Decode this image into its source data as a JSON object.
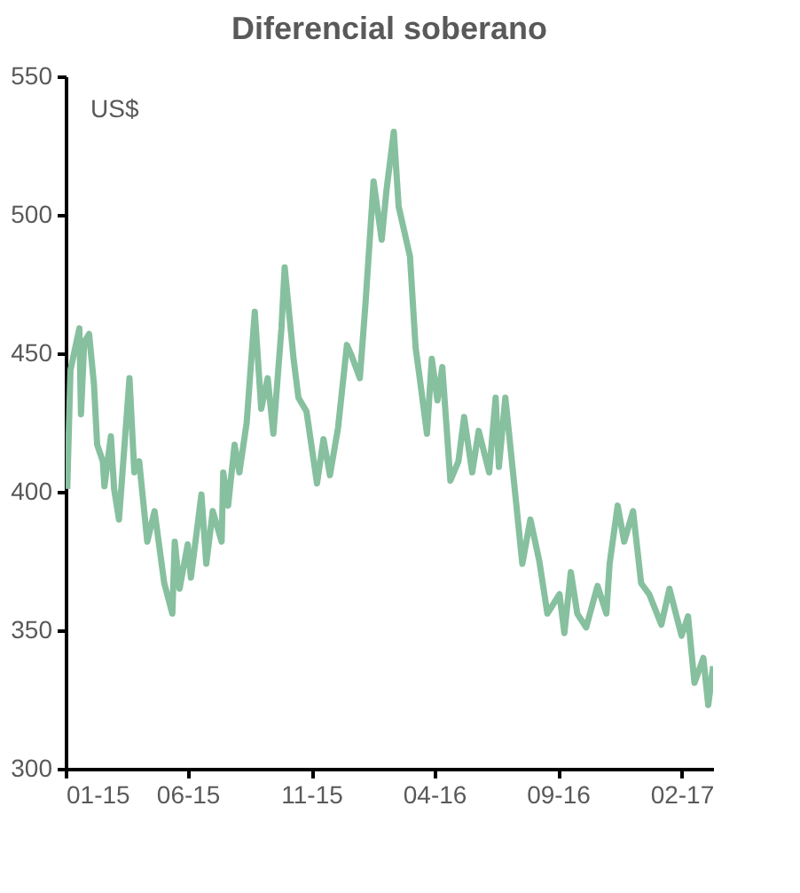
{
  "chart_data": {
    "type": "line",
    "title": "Diferencial soberano",
    "annotations": [
      "US$"
    ],
    "xlim": [
      "2015-01-01",
      "2017-03-12"
    ],
    "xticks": [
      {
        "value": "2015-01-01",
        "label": "01-15"
      },
      {
        "value": "2015-06-01",
        "label": "06-15"
      },
      {
        "value": "2015-11-01",
        "label": "11-15"
      },
      {
        "value": "2016-04-01",
        "label": "04-16"
      },
      {
        "value": "2016-09-01",
        "label": "09-16"
      },
      {
        "value": "2017-02-01",
        "label": "02-17"
      }
    ],
    "ylim": [
      300,
      550
    ],
    "yticks": [
      300,
      350,
      400,
      450,
      500,
      550
    ],
    "grid": false,
    "line_style": "solid",
    "marker": "none",
    "x": [
      "2015-01-03",
      "2015-01-07",
      "2015-01-18",
      "2015-01-20",
      "2015-01-24",
      "2015-01-30",
      "2015-02-05",
      "2015-02-09",
      "2015-02-16",
      "2015-02-18",
      "2015-02-26",
      "2015-03-02",
      "2015-03-08",
      "2015-03-21",
      "2015-03-27",
      "2015-04-02",
      "2015-04-12",
      "2015-04-21",
      "2015-04-27",
      "2015-05-03",
      "2015-05-13",
      "2015-05-16",
      "2015-05-22",
      "2015-06-01",
      "2015-06-05",
      "2015-06-18",
      "2015-06-24",
      "2015-07-02",
      "2015-07-13",
      "2015-07-15",
      "2015-07-21",
      "2015-07-29",
      "2015-08-04",
      "2015-08-13",
      "2015-08-23",
      "2015-08-31",
      "2015-09-08",
      "2015-09-15",
      "2015-09-25",
      "2015-09-29",
      "2015-10-10",
      "2015-10-16",
      "2015-10-26",
      "2015-11-08",
      "2015-11-16",
      "2015-11-24",
      "2015-12-04",
      "2015-12-15",
      "2015-12-21",
      "2015-12-31",
      "2016-01-07",
      "2016-01-17",
      "2016-01-27",
      "2016-02-02",
      "2016-02-11",
      "2016-02-17",
      "2016-03-02",
      "2016-03-09",
      "2016-03-15",
      "2016-03-23",
      "2016-03-29",
      "2016-04-05",
      "2016-04-11",
      "2016-04-21",
      "2016-05-01",
      "2016-05-08",
      "2016-05-18",
      "2016-05-26",
      "2016-06-08",
      "2016-06-16",
      "2016-06-20",
      "2016-06-28",
      "2016-07-11",
      "2016-07-19",
      "2016-07-29",
      "2016-08-09",
      "2016-08-19",
      "2016-09-03",
      "2016-09-09",
      "2016-09-17",
      "2016-09-25",
      "2016-10-06",
      "2016-10-20",
      "2016-10-31",
      "2016-11-04",
      "2016-11-14",
      "2016-11-22",
      "2016-12-03",
      "2016-12-13",
      "2016-12-23",
      "2017-01-07",
      "2017-01-17",
      "2017-02-01",
      "2017-02-09",
      "2017-02-17",
      "2017-02-28",
      "2017-03-06",
      "2017-03-12"
    ],
    "series": [
      {
        "color": "#86c09f",
        "values": [
          401,
          444,
          459,
          428,
          454,
          457,
          439,
          417,
          411,
          402,
          420,
          401,
          390,
          441,
          407,
          411,
          382,
          393,
          380,
          367,
          356,
          382,
          365,
          381,
          369,
          399,
          374,
          393,
          382,
          407,
          395,
          417,
          407,
          425,
          465,
          430,
          441,
          421,
          459,
          481,
          448,
          434,
          429,
          403,
          419,
          406,
          423,
          453,
          449,
          441,
          468,
          512,
          491,
          509,
          530,
          503,
          485,
          452,
          439,
          421,
          448,
          433,
          445,
          404,
          411,
          427,
          407,
          422,
          407,
          434,
          409,
          434,
          397,
          374,
          390,
          375,
          356,
          363,
          349,
          371,
          356,
          351,
          366,
          356,
          374,
          395,
          382,
          393,
          367,
          363,
          352,
          365,
          348,
          355,
          331,
          340,
          323,
          337
        ]
      }
    ]
  }
}
